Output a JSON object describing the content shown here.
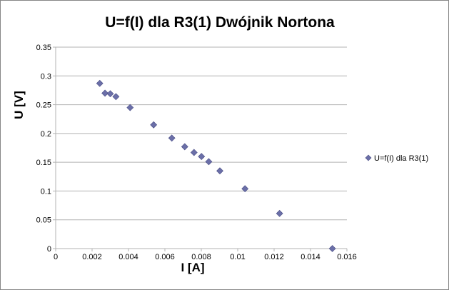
{
  "chart_data": {
    "type": "scatter",
    "title": "U=f(I) dla R3(1) Dwójnik Nortona",
    "xlabel": "I [A]",
    "ylabel": "U [V]",
    "xlim": [
      0,
      0.016
    ],
    "ylim": [
      0,
      0.35
    ],
    "x_ticks": [
      "0",
      "0.002",
      "0.004",
      "0.006",
      "0.008",
      "0.01",
      "0.012",
      "0.014",
      "0.016"
    ],
    "y_ticks": [
      "0",
      "0.05",
      "0.1",
      "0.15",
      "0.2",
      "0.25",
      "0.3",
      "0.35"
    ],
    "grid": "horizontal",
    "legend_position": "right",
    "marker_color": "#6b6fa8",
    "series": [
      {
        "name": "U=f(I) dla R3(1)",
        "points": [
          {
            "x": 0.00242,
            "y": 0.287
          },
          {
            "x": 0.00271,
            "y": 0.27
          },
          {
            "x": 0.003,
            "y": 0.269
          },
          {
            "x": 0.00331,
            "y": 0.264
          },
          {
            "x": 0.00409,
            "y": 0.245
          },
          {
            "x": 0.00538,
            "y": 0.215
          },
          {
            "x": 0.00638,
            "y": 0.192
          },
          {
            "x": 0.00709,
            "y": 0.177
          },
          {
            "x": 0.0076,
            "y": 0.167
          },
          {
            "x": 0.00801,
            "y": 0.16
          },
          {
            "x": 0.00841,
            "y": 0.151
          },
          {
            "x": 0.00902,
            "y": 0.135
          },
          {
            "x": 0.0104,
            "y": 0.104
          },
          {
            "x": 0.0123,
            "y": 0.061
          },
          {
            "x": 0.0152,
            "y": 0.0
          }
        ]
      }
    ]
  }
}
